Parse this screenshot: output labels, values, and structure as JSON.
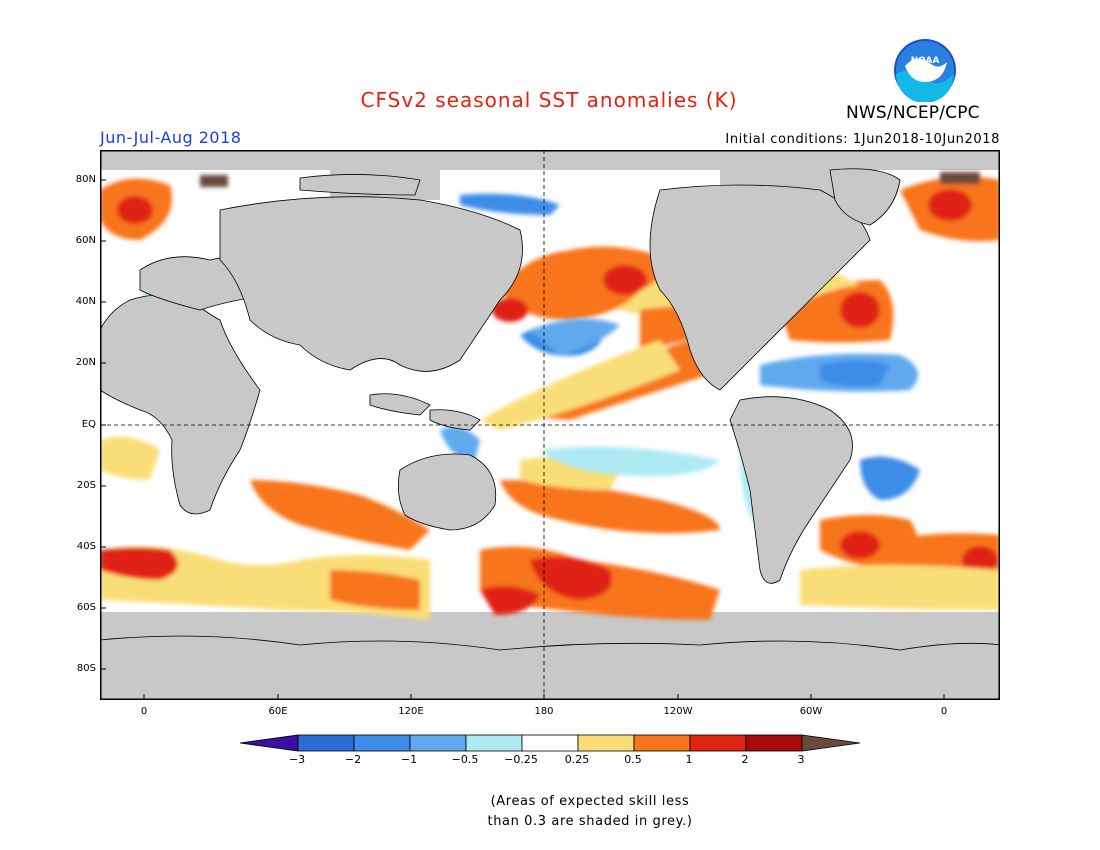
{
  "header": {
    "title": "CFSv2 seasonal SST anomalies (K)",
    "season": "Jun-Jul-Aug 2018",
    "initial_conditions": "Initial conditions: 1Jun2018-10Jun2018",
    "agency": "NWS/NCEP/CPC",
    "logo_text": "NOAA"
  },
  "map": {
    "lat_labels": [
      "80N",
      "60N",
      "40N",
      "20N",
      "EQ",
      "20S",
      "40S",
      "60S",
      "80S"
    ],
    "lon_labels": [
      "0",
      "60E",
      "120E",
      "180",
      "120W",
      "60W",
      "0"
    ],
    "reference_lines": [
      "equator",
      "dateline"
    ]
  },
  "colorbar": {
    "ticks": [
      "−3",
      "−2",
      "−1",
      "−0.5",
      "−0.25",
      "0.25",
      "0.5",
      "1",
      "2",
      "3"
    ],
    "colors": [
      "#3b0fa0",
      "#2b6cd8",
      "#3d8ce8",
      "#61a9ee",
      "#aeeaf4",
      "#ffffff",
      "#f9de78",
      "#f8741a",
      "#e02412",
      "#a80a0a",
      "#6b4a3c"
    ]
  },
  "footnote": {
    "line1": "(Areas of expected skill less",
    "line2": "than 0.3 are shaded in grey.)"
  }
}
